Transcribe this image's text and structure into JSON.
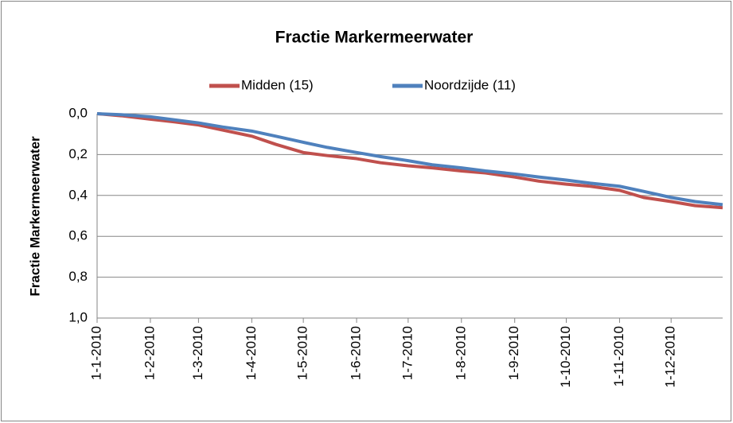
{
  "chart_data": {
    "type": "line",
    "title": "Fractie Markermeerwater",
    "y_label": "Fractie Markermeerwater",
    "x": [
      "1-1-2010",
      "15-1-2010",
      "1-2-2010",
      "15-2-2010",
      "1-3-2010",
      "15-3-2010",
      "1-4-2010",
      "15-4-2010",
      "1-5-2010",
      "15-5-2010",
      "1-6-2010",
      "15-6-2010",
      "1-7-2010",
      "15-7-2010",
      "1-8-2010",
      "15-8-2010",
      "1-9-2010",
      "15-9-2010",
      "1-10-2010",
      "15-10-2010",
      "1-11-2010",
      "15-11-2010",
      "1-12-2010",
      "15-12-2010",
      "31-12-2010"
    ],
    "series": [
      {
        "name": "Midden (15)",
        "color": "#c0504d",
        "values": [
          0,
          0.01,
          0.027,
          0.04,
          0.055,
          0.08,
          0.11,
          0.15,
          0.19,
          0.205,
          0.22,
          0.24,
          0.255,
          0.265,
          0.28,
          0.29,
          0.31,
          0.33,
          0.345,
          0.355,
          0.375,
          0.41,
          0.43,
          0.45,
          0.46
        ]
      },
      {
        "name": "Noordzijde (11)",
        "color": "#4f81bd",
        "values": [
          0,
          0.005,
          0.015,
          0.03,
          0.045,
          0.065,
          0.085,
          0.11,
          0.14,
          0.165,
          0.19,
          0.21,
          0.23,
          0.25,
          0.265,
          0.28,
          0.295,
          0.31,
          0.325,
          0.34,
          0.355,
          0.38,
          0.41,
          0.43,
          0.445
        ]
      }
    ],
    "xlim": [
      "1-1-2010",
      "31-12-2010"
    ],
    "xticks": [
      "1-1-2010",
      "1-2-2010",
      "1-3-2010",
      "1-4-2010",
      "1-5-2010",
      "1-6-2010",
      "1-7-2010",
      "1-8-2010",
      "1-9-2010",
      "1-10-2010",
      "1-11-2010",
      "1-12-2010"
    ],
    "ylim": [
      0,
      1
    ],
    "yticks": [
      {
        "value": 0,
        "label": "0,0"
      },
      {
        "value": 0.2,
        "label": "0,2"
      },
      {
        "value": 0.4,
        "label": "0,4"
      },
      {
        "value": 0.6,
        "label": "0,6"
      },
      {
        "value": 0.8,
        "label": "0,8"
      },
      {
        "value": 1,
        "label": "1,0"
      }
    ],
    "y_inverted": true,
    "grid": true,
    "legend": "top"
  }
}
